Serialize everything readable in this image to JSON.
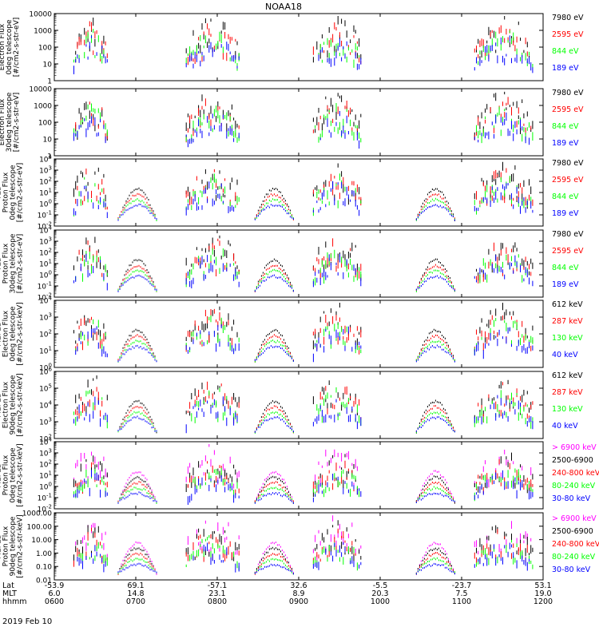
{
  "title": "NOAA18",
  "date_label": "2019 Feb 10",
  "xaxis": {
    "row_labels": [
      "Lat",
      "MLT",
      "hhmm"
    ],
    "ticks": [
      {
        "lat": "-53.9",
        "mlt": "6.0",
        "hhmm": "0600"
      },
      {
        "lat": "69.1",
        "mlt": "14.8",
        "hhmm": "0700"
      },
      {
        "lat": "-57.1",
        "mlt": "23.1",
        "hhmm": "0800"
      },
      {
        "lat": "32.6",
        "mlt": "8.9",
        "hhmm": "0900"
      },
      {
        "lat": "-5.5",
        "mlt": "20.3",
        "hhmm": "1000"
      },
      {
        "lat": "-23.7",
        "mlt": "7.5",
        "hhmm": "1100"
      },
      {
        "lat": "53.1",
        "mlt": "19.0",
        "hhmm": "1200"
      }
    ]
  },
  "colors": {
    "black": "#000000",
    "red": "#ff0000",
    "green": "#00ff00",
    "blue": "#0000ff",
    "magenta": "#ff00ff"
  },
  "chart_data": [
    {
      "type": "scatter",
      "ylabel_lines": [
        "Electron Flux",
        "0deg telescope",
        "[#/cm2-s-str-eV]"
      ],
      "yscale": "log",
      "ylim": [
        1,
        10000
      ],
      "ytick_style": "plain",
      "legend": [
        {
          "name": "7980 eV",
          "color": "#000000"
        },
        {
          "name": "2595 eV",
          "color": "#ff0000"
        },
        {
          "name": "844 eV",
          "color": "#00ff00"
        },
        {
          "name": "189 eV",
          "color": "#0000ff"
        }
      ]
    },
    {
      "type": "scatter",
      "ylabel_lines": [
        "Electron Flux",
        "30deg telescope",
        "[#/cm2-s-str-eV]"
      ],
      "yscale": "log",
      "ylim": [
        1,
        10000
      ],
      "ytick_style": "plain",
      "legend": [
        {
          "name": "7980 eV",
          "color": "#000000"
        },
        {
          "name": "2595 eV",
          "color": "#ff0000"
        },
        {
          "name": "844 eV",
          "color": "#00ff00"
        },
        {
          "name": "189 eV",
          "color": "#0000ff"
        }
      ]
    },
    {
      "type": "scatter",
      "ylabel_lines": [
        "TED",
        "Proton Flux",
        "0deg telescope",
        "[#/cm2-s-str-eV]"
      ],
      "yscale": "log",
      "ylim": [
        0.01,
        10000
      ],
      "ytick_style": "power",
      "legend": [
        {
          "name": "7980 eV",
          "color": "#000000"
        },
        {
          "name": "2595 eV",
          "color": "#ff0000"
        },
        {
          "name": "844 eV",
          "color": "#00ff00"
        },
        {
          "name": "189 eV",
          "color": "#0000ff"
        }
      ]
    },
    {
      "type": "scatter",
      "ylabel_lines": [
        "TED",
        "Proton Flux",
        "30deg telescope",
        "[#/cm2-s-str-eV]"
      ],
      "yscale": "log",
      "ylim": [
        0.01,
        10000
      ],
      "ytick_style": "power",
      "legend": [
        {
          "name": "7980 eV",
          "color": "#000000"
        },
        {
          "name": "2595 eV",
          "color": "#ff0000"
        },
        {
          "name": "844 eV",
          "color": "#00ff00"
        },
        {
          "name": "189 eV",
          "color": "#0000ff"
        }
      ]
    },
    {
      "type": "scatter",
      "ylabel_lines": [
        "MEPED",
        "Electron Flux",
        "0deg telescope",
        "[#/cm2-s-str-keV]"
      ],
      "yscale": "log",
      "ylim": [
        1,
        10000
      ],
      "ytick_style": "power",
      "legend": [
        {
          "name": "612 keV",
          "color": "#000000"
        },
        {
          "name": "287 keV",
          "color": "#ff0000"
        },
        {
          "name": "130 keV",
          "color": "#00ff00"
        },
        {
          "name": "40 keV",
          "color": "#0000ff"
        }
      ]
    },
    {
      "type": "scatter",
      "ylabel_lines": [
        "MEPED",
        "Electron Flux",
        "90deg telescope",
        "[#/cm2-s-str-keV]"
      ],
      "yscale": "log",
      "ylim": [
        100,
        1000000
      ],
      "ytick_style": "power",
      "legend": [
        {
          "name": "612 keV",
          "color": "#000000"
        },
        {
          "name": "287 keV",
          "color": "#ff0000"
        },
        {
          "name": "130 keV",
          "color": "#00ff00"
        },
        {
          "name": "40 keV",
          "color": "#0000ff"
        }
      ]
    },
    {
      "type": "scatter",
      "ylabel_lines": [
        "MEPED",
        "Proton Flux",
        "0deg telescope",
        "[#/cm2-s-str-keV]"
      ],
      "yscale": "log",
      "ylim": [
        0.01,
        10000
      ],
      "ytick_style": "power",
      "legend": [
        {
          "name": "> 6900 keV",
          "color": "#ff00ff"
        },
        {
          "name": "2500-6900",
          "color": "#000000"
        },
        {
          "name": "240-800 keV",
          "color": "#ff0000"
        },
        {
          "name": "80-240 keV",
          "color": "#00ff00"
        },
        {
          "name": "30-80 keV",
          "color": "#0000ff"
        }
      ]
    },
    {
      "type": "scatter",
      "ylabel_lines": [
        "MEPED",
        "Proton Flux",
        "90deg telescope",
        "[#/cm2-s-str-keV]"
      ],
      "yscale": "log",
      "ylim": [
        0.01,
        1000
      ],
      "ytick_style": "decimal",
      "yticklabels": [
        "0.01",
        "0.10",
        "1.00",
        "10.00",
        "100.00",
        "1000.00"
      ],
      "legend": [
        {
          "name": "> 6900 keV",
          "color": "#ff00ff"
        },
        {
          "name": "2500-6900",
          "color": "#000000"
        },
        {
          "name": "240-800 keV",
          "color": "#ff0000"
        },
        {
          "name": "80-240 keV",
          "color": "#00ff00"
        },
        {
          "name": "30-80 keV",
          "color": "#0000ff"
        }
      ]
    }
  ]
}
